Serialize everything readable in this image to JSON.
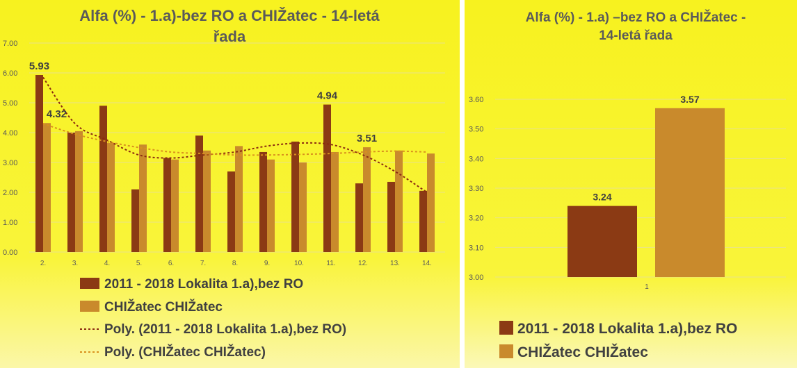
{
  "chart_data": [
    {
      "type": "bar",
      "title": "Alfa (%) - 1.a)-bez RO a CHIŽatec - 14-letá řada",
      "title_lines": [
        "Alfa (%) - 1.a)-bez RO a CHIŽatec - 14-letá",
        "řada"
      ],
      "categories": [
        "2.",
        "3.",
        "4.",
        "5.",
        "6.",
        "7.",
        "8.",
        "9.",
        "10.",
        "11.",
        "12.",
        "13.",
        "14."
      ],
      "ylim": [
        0,
        7
      ],
      "yticks": [
        "0.00",
        "1.00",
        "2.00",
        "3.00",
        "4.00",
        "5.00",
        "6.00",
        "7.00"
      ],
      "series": [
        {
          "name": "2011 - 2018 Lokalita 1.a),bez RO",
          "color": "#8b3a14",
          "values": [
            5.93,
            4.0,
            4.9,
            2.1,
            3.15,
            3.9,
            2.7,
            3.35,
            3.7,
            4.94,
            2.3,
            2.35,
            2.05
          ]
        },
        {
          "name": "CHIŽatec CHIŽatec",
          "color": "#c98a2c",
          "values": [
            4.32,
            4.05,
            3.65,
            3.6,
            3.1,
            3.4,
            3.55,
            3.1,
            3.0,
            3.35,
            3.51,
            3.4,
            3.3
          ]
        }
      ],
      "trendlines": [
        {
          "name": "Poly. (2011 - 2018 Lokalita 1.a),bez RO)",
          "color": "#8b2a10",
          "values": [
            5.85,
            4.3,
            3.75,
            3.25,
            3.15,
            3.25,
            3.35,
            3.55,
            3.65,
            3.6,
            3.25,
            2.7,
            2.0
          ]
        },
        {
          "name": "Poly. (CHIŽatec CHIŽatec)",
          "color": "#d9911e",
          "values": [
            4.3,
            3.95,
            3.7,
            3.5,
            3.35,
            3.3,
            3.25,
            3.25,
            3.27,
            3.3,
            3.35,
            3.38,
            3.35
          ]
        }
      ],
      "data_labels": [
        {
          "series": 0,
          "index": 0,
          "text": "5.93"
        },
        {
          "series": 1,
          "index": 0,
          "text": "4.32"
        },
        {
          "series": 0,
          "index": 9,
          "text": "4.94"
        },
        {
          "series": 1,
          "index": 10,
          "text": "3.51"
        }
      ],
      "legend_labels": [
        "2011 - 2018 Lokalita 1.a),bez RO",
        "CHIŽatec CHIŽatec",
        "Poly. (2011 - 2018 Lokalita 1.a),bez RO)",
        "Poly. (CHIŽatec CHIŽatec)"
      ],
      "legend_position": "bottom"
    },
    {
      "type": "bar",
      "title": "Alfa (%) - 1.a) –bez RO a CHIŽatec - 14-letá řada",
      "title_lines": [
        "Alfa (%) - 1.a) –bez RO a CHIŽatec -",
        "14-letá řada"
      ],
      "categories": [
        "1"
      ],
      "ylim": [
        3.0,
        3.6
      ],
      "yticks": [
        "3.00",
        "3.10",
        "3.20",
        "3.30",
        "3.40",
        "3.50",
        "3.60"
      ],
      "series": [
        {
          "name": "2011 - 2018 Lokalita 1.a),bez RO",
          "color": "#8b3a14",
          "values": [
            3.24
          ],
          "label": "3.24"
        },
        {
          "name": "CHIŽatec CHIŽatec",
          "color": "#c98a2c",
          "values": [
            3.57
          ],
          "label": "3.57"
        }
      ],
      "legend_labels": [
        "2011 - 2018 Lokalita 1.a),bez RO",
        "CHIŽatec CHIŽatec"
      ],
      "legend_position": "bottom"
    }
  ]
}
